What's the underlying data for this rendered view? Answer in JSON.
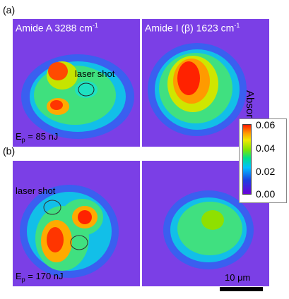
{
  "labels": {
    "a": "(a)",
    "b": "(b)"
  },
  "panels": {
    "top_left_title": "Amide A 3288 cm",
    "top_left_title_exp": "-1",
    "top_right_title": "Amide I (β) 1623 cm",
    "top_right_title_exp": "-1",
    "laser_shot_a": "laser shot",
    "laser_shot_b": "laser shot",
    "ep_a_prefix": "E",
    "ep_a_sub": "p",
    "ep_a_value": " = 85 nJ",
    "ep_b_prefix": "E",
    "ep_b_sub": "p",
    "ep_b_value": " = 170 nJ"
  },
  "colorbar": {
    "title": "Absorbance",
    "ticks": [
      "0.06",
      "0.04",
      "0.02",
      "0.00"
    ],
    "colors": [
      "#ff1a00",
      "#f0e800",
      "#7fe400",
      "#00e08a",
      "#00bfff",
      "#1c3fe0",
      "#6a00d8"
    ]
  },
  "scalebar": {
    "label": "10 μm"
  }
}
